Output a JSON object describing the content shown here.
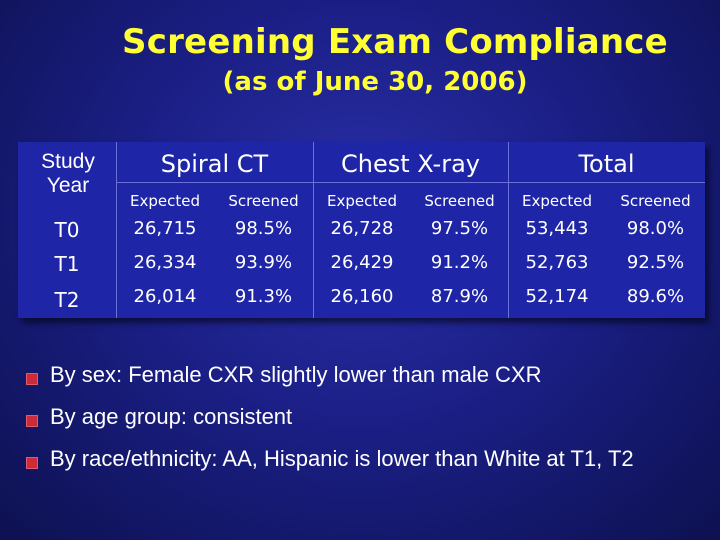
{
  "title": "Screening Exam Compliance",
  "subtitle": "(as of June 30, 2006)",
  "table": {
    "year_header": "Study Year",
    "groups": [
      "Spiral CT",
      "Chest X-ray",
      "Total"
    ],
    "subheaders": [
      "Expected",
      "Screened",
      "Expected",
      "Screened",
      "Expected",
      "Screened"
    ],
    "rows": [
      {
        "year": "T0",
        "values": [
          "26,715",
          "98.5%",
          "26,728",
          "97.5%",
          "53,443",
          "98.0%"
        ]
      },
      {
        "year": "T1",
        "values": [
          "26,334",
          "93.9%",
          "26,429",
          "91.2%",
          "52,763",
          "92.5%"
        ]
      },
      {
        "year": "T2",
        "values": [
          "26,014",
          "91.3%",
          "26,160",
          "87.9%",
          "52,174",
          "89.6%"
        ]
      }
    ]
  },
  "bullets": [
    "By sex:  Female CXR slightly lower than male CXR",
    "By age group: consistent",
    "By race/ethnicity:  AA, Hispanic is lower than White at T1, T2"
  ],
  "colors": {
    "title": "#ffff33",
    "background": "#1b1f86",
    "table_fill": "#1e25a6",
    "bullet": "#cc2b3c"
  }
}
